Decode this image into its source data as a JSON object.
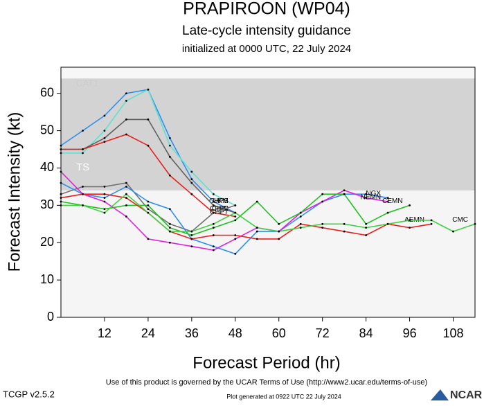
{
  "chart_data": {
    "type": "line",
    "title": "PRAPIROON (WP04)",
    "subtitle": "Late-cycle intensity guidance",
    "init_text": "initialized at 0000 UTC, 22 July 2024",
    "x_label": "Forecast Period (hr)",
    "y_label": "Forecast Intensity (kt)",
    "xlim": [
      0,
      114
    ],
    "ylim": [
      0,
      67
    ],
    "xticks": [
      12,
      24,
      36,
      48,
      60,
      72,
      84,
      96,
      108
    ],
    "yticks": [
      0,
      10,
      20,
      30,
      40,
      50,
      60
    ],
    "bands": [
      {
        "label": "TS",
        "from": 34,
        "to": 64,
        "color": "#d3d3d3"
      },
      {
        "label": "CAT1",
        "from": 64,
        "to": 67,
        "color": "#f7f7f7"
      }
    ],
    "x": [
      0,
      6,
      12,
      18,
      24,
      30,
      36,
      42,
      48,
      54,
      60,
      66,
      72,
      78,
      84,
      90,
      96,
      102,
      108,
      114
    ],
    "series": [
      {
        "name": "CHIP",
        "color": "#2f8fef",
        "values": [
          46,
          50,
          54,
          60,
          61,
          48,
          37,
          31,
          28,
          null,
          null,
          null,
          null,
          null,
          null,
          null,
          null,
          null,
          null,
          null
        ]
      },
      {
        "name": "CHPS",
        "color": "#5fe0d0",
        "values": [
          44,
          44,
          50,
          58,
          61,
          46,
          39,
          33,
          30,
          null,
          null,
          null,
          null,
          null,
          null,
          null,
          null,
          null,
          null,
          null
        ]
      },
      {
        "name": "CHP2",
        "color": "#606060",
        "values": [
          45,
          45,
          48,
          53,
          53,
          43,
          36,
          30,
          28,
          null,
          null,
          null,
          null,
          null,
          null,
          null,
          null,
          null,
          null,
          null
        ]
      },
      {
        "name": "CHP7",
        "color": "#e8201c",
        "values": [
          45,
          45,
          47,
          49,
          46,
          38,
          33,
          28,
          27,
          null,
          null,
          null,
          null,
          null,
          null,
          null,
          null,
          null,
          null,
          null
        ]
      },
      {
        "name": "UKM",
        "color": "#707070",
        "values": [
          33,
          35,
          35,
          36,
          29,
          25,
          23,
          28,
          30,
          null,
          null,
          null,
          null,
          null,
          null,
          null,
          null,
          null,
          null,
          null
        ]
      },
      {
        "name": "NGX",
        "color": "#2f8fef",
        "values": [
          36,
          33,
          32,
          35,
          31,
          29,
          21,
          19,
          17,
          23,
          23,
          27,
          31,
          33,
          33,
          32,
          null,
          null,
          null,
          null
        ]
      },
      {
        "name": "NEMN",
        "color": "#e020e0",
        "values": [
          39,
          33,
          31,
          27,
          21,
          20,
          19,
          18,
          21,
          24,
          23,
          28,
          31,
          34,
          32,
          31,
          null,
          null,
          null,
          null
        ]
      },
      {
        "name": "CEMN",
        "color": "#20c020",
        "values": [
          31,
          30,
          29,
          30,
          30,
          24,
          22,
          24,
          26,
          31,
          25,
          28,
          33,
          33,
          25,
          28,
          30,
          null,
          null,
          null
        ]
      },
      {
        "name": "AEMN",
        "color": "#e8201c",
        "values": [
          32,
          33,
          33,
          32,
          28,
          23,
          21,
          22,
          22,
          21,
          21,
          25,
          24,
          23,
          22,
          25,
          24,
          25,
          null,
          null
        ]
      },
      {
        "name": "CMC",
        "color": "#40d040",
        "values": [
          30,
          30,
          28,
          33,
          28,
          23,
          23,
          25,
          28,
          24,
          23,
          24,
          25,
          25,
          24,
          25,
          26,
          26,
          23,
          25
        ]
      }
    ],
    "footer": {
      "terms": "Use of this product is governed by the UCAR Terms of Use (http://www2.ucar.edu/terms-of-use)",
      "version": "TCGP v2.5.2",
      "generated": "Plot generated at 0922 UTC  22 July 2024",
      "logo": "NCAR"
    }
  }
}
